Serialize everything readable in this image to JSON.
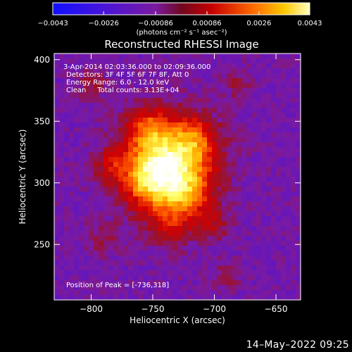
{
  "chart_data": {
    "type": "heatmap",
    "title": "Reconstructed RHESSI Image",
    "xlabel": "Heliocentric X (arcsec)",
    "ylabel": "Heliocentric Y (arcsec)",
    "xlim": [
      -830,
      -630
    ],
    "ylim": [
      205,
      405
    ],
    "x_ticks": [
      -800,
      -750,
      -700,
      -650
    ],
    "y_ticks": [
      250,
      300,
      350,
      400
    ],
    "x_tick_labels": [
      "−800",
      "−750",
      "−700",
      "−650"
    ],
    "y_tick_labels": [
      "250",
      "300",
      "350",
      "400"
    ],
    "colorbar": {
      "min": -0.0043,
      "max": 0.0043,
      "ticks": [
        -0.0043,
        -0.0026,
        -0.00086,
        0.00086,
        0.0026,
        0.0043
      ],
      "tick_labels": [
        "−0.0043",
        "−0.0026",
        "−0.00086",
        "0.00086",
        "0.0026",
        "0.0043"
      ],
      "units": "(photons cm⁻² s⁻¹ asec⁻²)"
    },
    "colormap_stops": [
      "#1a10ff",
      "#5b14c8",
      "#7a1aa0",
      "#a01020",
      "#d40000",
      "#ff5a00",
      "#ffb400",
      "#ffff60",
      "#ffffff"
    ],
    "peak": {
      "x": -736,
      "y": 318
    },
    "annotations": [
      "3-Apr-2014 02:03:36.000 to 02:09:36.000",
      "Detectors: 3F 4F 5F 6F 7F 8F, Att 0",
      "Energy Range: 6.0 - 12.0 keV",
      "Clean     Total counts: 3.13E+04"
    ],
    "peak_label": "Position of Peak = [-736,318]",
    "grid": false
  },
  "timestamp": "14–May–2022 09:25"
}
